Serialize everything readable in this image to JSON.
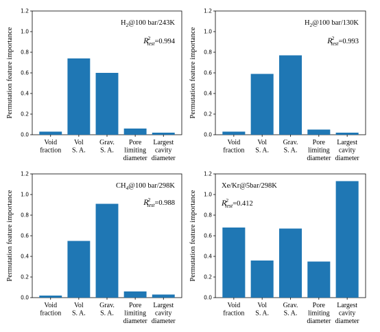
{
  "ylabel": "Permutation feature importance",
  "chart_data": [
    {
      "type": "bar",
      "panel": "top-left",
      "condition_label": "H2@100 bar/243K",
      "r2_label": "=0.994",
      "categories": [
        [
          "Void",
          "fraction"
        ],
        [
          "Vol",
          "S. A."
        ],
        [
          "Grav.",
          "S. A."
        ],
        [
          "Pore",
          "limiting",
          "diameter"
        ],
        [
          "Largest",
          "cavity",
          "diameter"
        ]
      ],
      "values": [
        0.03,
        0.74,
        0.6,
        0.06,
        0.02
      ],
      "ylim": [
        0,
        1.2
      ],
      "yticks": [
        "0.0",
        "0.2",
        "0.4",
        "0.6",
        "0.8",
        "1.0",
        "1.2"
      ],
      "color": "#1f77b4"
    },
    {
      "type": "bar",
      "panel": "top-right",
      "condition_label": "H2@100 bar/130K",
      "r2_label": "=0.993",
      "categories": [
        [
          "Void",
          "fraction"
        ],
        [
          "Vol",
          "S. A."
        ],
        [
          "Grav.",
          "S. A."
        ],
        [
          "Pore",
          "limiting",
          "diameter"
        ],
        [
          "Largest",
          "cavity",
          "diameter"
        ]
      ],
      "values": [
        0.03,
        0.59,
        0.77,
        0.05,
        0.02
      ],
      "ylim": [
        0,
        1.2
      ],
      "yticks": [
        "0.0",
        "0.2",
        "0.4",
        "0.6",
        "0.8",
        "1.0",
        "1.2"
      ],
      "color": "#1f77b4"
    },
    {
      "type": "bar",
      "panel": "bottom-left",
      "condition_label": "CH4@100 bar/298K",
      "r2_label": "=0.988",
      "categories": [
        [
          "Void",
          "fraction"
        ],
        [
          "Vol",
          "S. A."
        ],
        [
          "Grav.",
          "S. A."
        ],
        [
          "Pore",
          "limiting",
          "diameter"
        ],
        [
          "Largest",
          "cavity",
          "diameter"
        ]
      ],
      "values": [
        0.02,
        0.55,
        0.91,
        0.06,
        0.03
      ],
      "ylim": [
        0,
        1.2
      ],
      "yticks": [
        "0.0",
        "0.2",
        "0.4",
        "0.6",
        "0.8",
        "1.0",
        "1.2"
      ],
      "color": "#1f77b4"
    },
    {
      "type": "bar",
      "panel": "bottom-right",
      "condition_label": "Xe/Kr@5bar/298K",
      "r2_label": "=0.412",
      "categories": [
        [
          "Void",
          "fraction"
        ],
        [
          "Vol",
          "S. A."
        ],
        [
          "Grav.",
          "S. A."
        ],
        [
          "Pore",
          "limiting",
          "diameter"
        ],
        [
          "Largest",
          "cavity",
          "diameter"
        ]
      ],
      "values": [
        0.68,
        0.36,
        0.67,
        0.35,
        1.13
      ],
      "ylim": [
        0,
        1.2
      ],
      "yticks": [
        "0.0",
        "0.2",
        "0.4",
        "0.6",
        "0.8",
        "1.0",
        "1.2"
      ],
      "color": "#1f77b4"
    }
  ]
}
